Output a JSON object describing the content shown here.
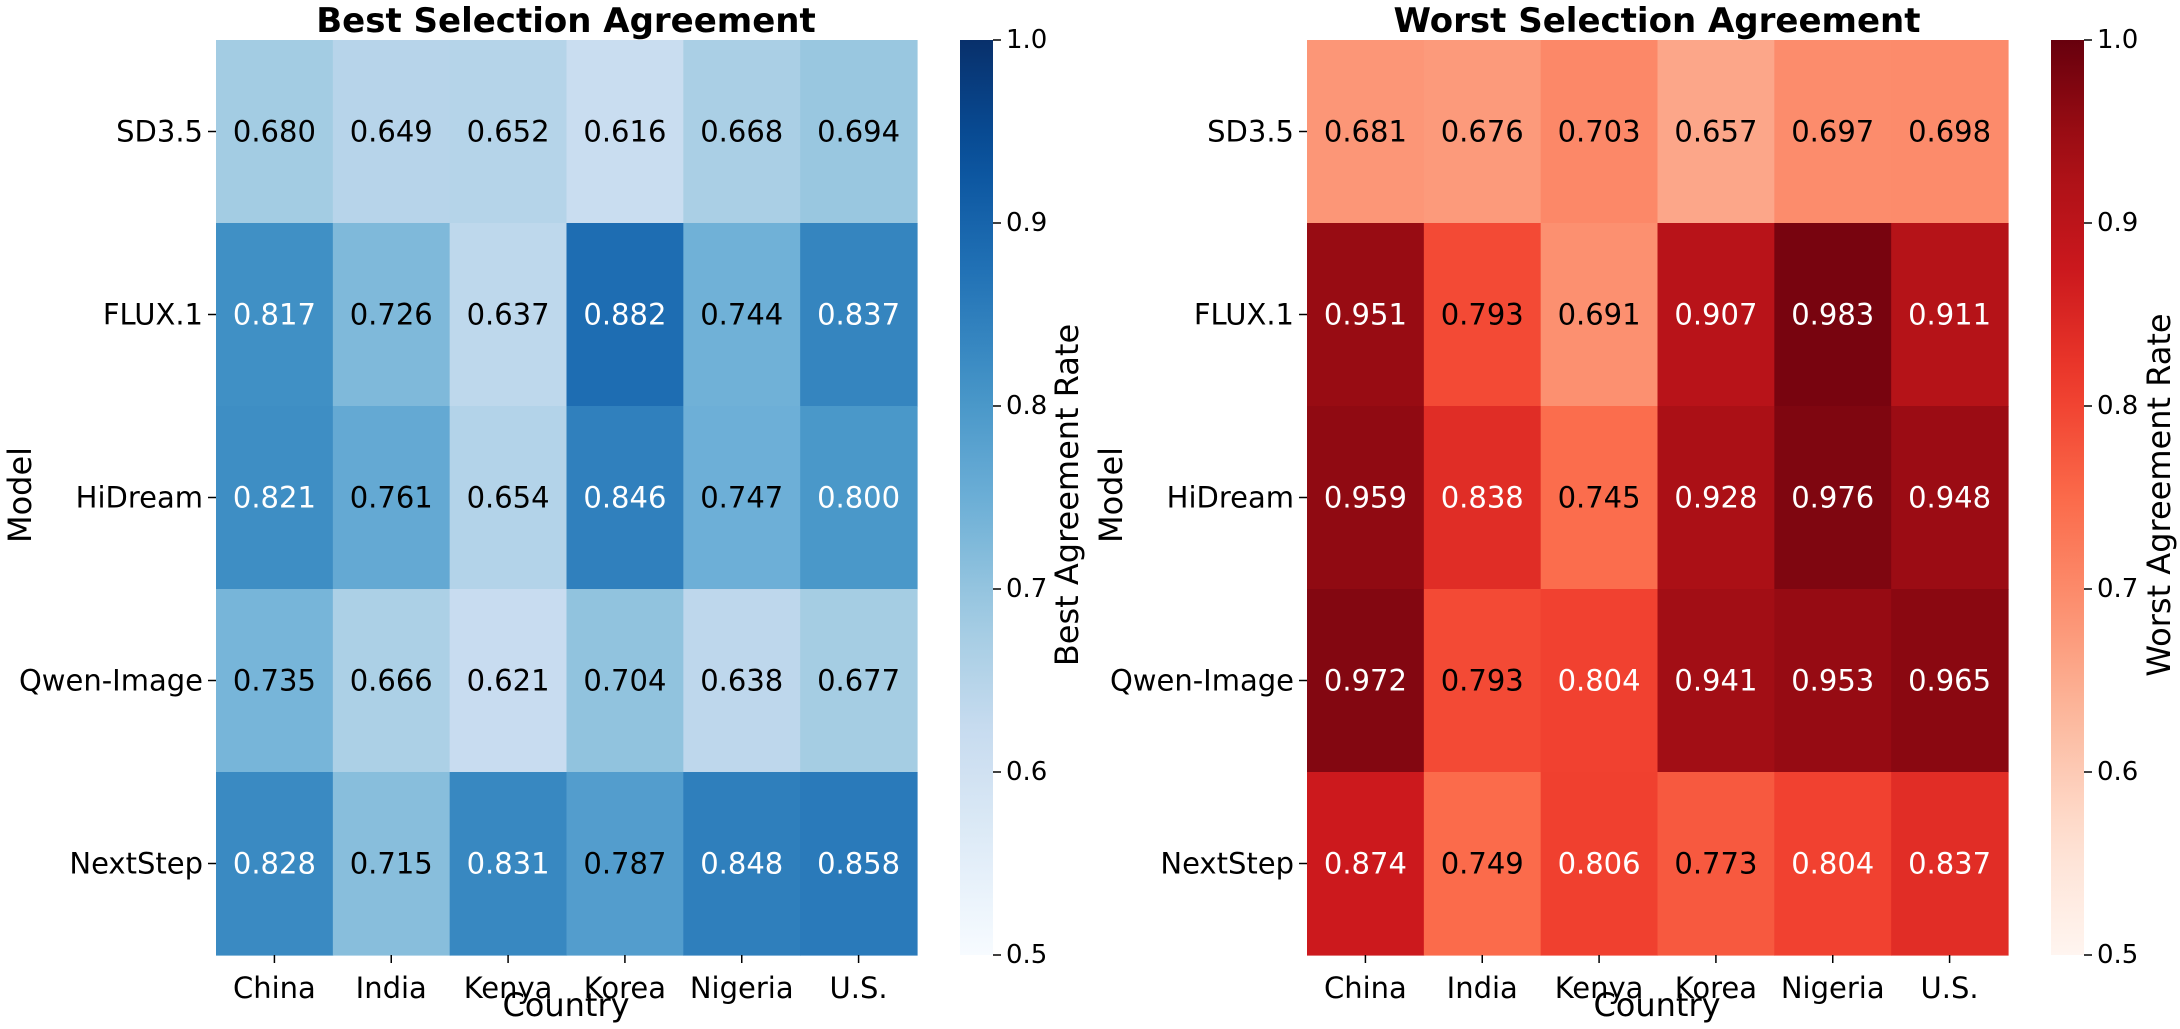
{
  "chart_data": [
    {
      "type": "heatmap",
      "title": "Best Selection Agreement",
      "xlabel": "Country",
      "ylabel": "Model",
      "x_categories": [
        "China",
        "India",
        "Kenya",
        "Korea",
        "Nigeria",
        "U.S."
      ],
      "y_categories": [
        "SD3.5",
        "FLUX.1",
        "HiDream",
        "Qwen-Image",
        "NextStep"
      ],
      "values": [
        [
          0.68,
          0.649,
          0.652,
          0.616,
          0.668,
          0.694
        ],
        [
          0.817,
          0.726,
          0.637,
          0.882,
          0.744,
          0.837
        ],
        [
          0.821,
          0.761,
          0.654,
          0.846,
          0.747,
          0.8
        ],
        [
          0.735,
          0.666,
          0.621,
          0.704,
          0.638,
          0.677
        ],
        [
          0.828,
          0.715,
          0.831,
          0.787,
          0.848,
          0.858
        ]
      ],
      "colormap": "Blues",
      "colorbar": {
        "label": "Best Agreement Rate",
        "vmin": 0.5,
        "vmax": 1.0,
        "ticks": [
          "0.5",
          "0.6",
          "0.7",
          "0.8",
          "0.9",
          "1.0"
        ]
      }
    },
    {
      "type": "heatmap",
      "title": "Worst Selection Agreement",
      "xlabel": "Country",
      "ylabel": "Model",
      "x_categories": [
        "China",
        "India",
        "Kenya",
        "Korea",
        "Nigeria",
        "U.S."
      ],
      "y_categories": [
        "SD3.5",
        "FLUX.1",
        "HiDream",
        "Qwen-Image",
        "NextStep"
      ],
      "values": [
        [
          0.681,
          0.676,
          0.703,
          0.657,
          0.697,
          0.698
        ],
        [
          0.951,
          0.793,
          0.691,
          0.907,
          0.983,
          0.911
        ],
        [
          0.959,
          0.838,
          0.745,
          0.928,
          0.976,
          0.948
        ],
        [
          0.972,
          0.793,
          0.804,
          0.941,
          0.953,
          0.965
        ],
        [
          0.874,
          0.749,
          0.806,
          0.773,
          0.804,
          0.837
        ]
      ],
      "colormap": "Reds",
      "colorbar": {
        "label": "Worst Agreement Rate",
        "vmin": 0.5,
        "vmax": 1.0,
        "ticks": [
          "0.5",
          "0.6",
          "0.7",
          "0.8",
          "0.9",
          "1.0"
        ]
      }
    }
  ]
}
